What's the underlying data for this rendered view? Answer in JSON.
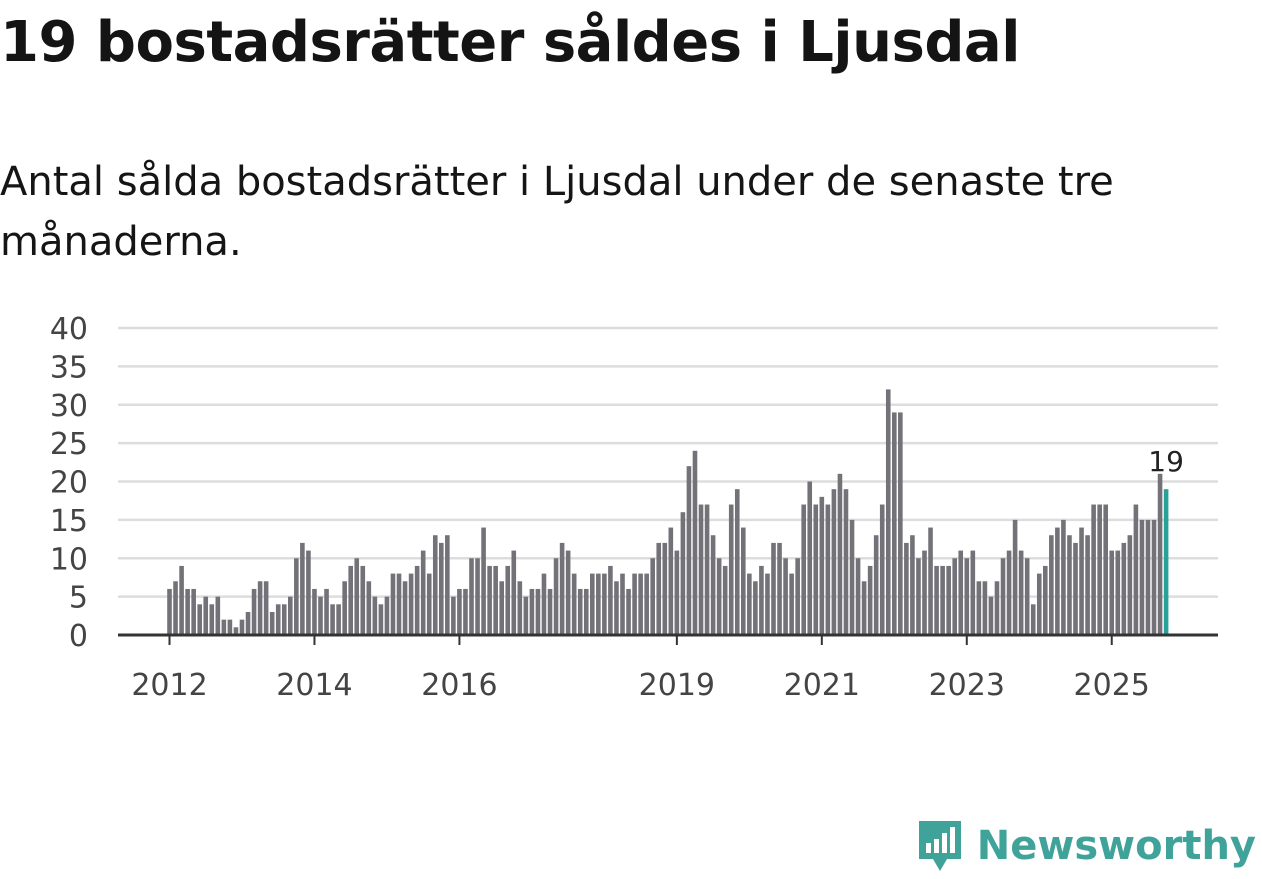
{
  "header": {
    "title": "19 bostadsrätter såldes i Ljusdal",
    "subtitle": "Antal sålda bostadsrätter i Ljusdal under de senaste tre månaderna."
  },
  "brand": {
    "name": "Newsworthy",
    "icon": "newsworthy-logo-icon",
    "color": "#3fa39a"
  },
  "colors": {
    "bar": "#737278",
    "highlight": "#2aa198",
    "grid": "#dddddd",
    "axis": "#333333"
  },
  "chart_data": {
    "type": "bar",
    "title": "19 bostadsrätter såldes i Ljusdal",
    "subtitle": "Antal sålda bostadsrätter i Ljusdal under de senaste tre månaderna.",
    "xlabel": "",
    "ylabel": "",
    "ylim": [
      0,
      40
    ],
    "yticks": [
      0,
      5,
      10,
      15,
      20,
      25,
      30,
      35,
      40
    ],
    "grid": true,
    "start": "2012-01",
    "frequency": "monthly",
    "xticks": [
      {
        "label": "2012",
        "index": 0
      },
      {
        "label": "2014",
        "index": 24
      },
      {
        "label": "2016",
        "index": 48
      },
      {
        "label": "2019",
        "index": 84
      },
      {
        "label": "2021",
        "index": 108
      },
      {
        "label": "2023",
        "index": 132
      },
      {
        "label": "2025",
        "index": 156
      }
    ],
    "values": [
      6,
      7,
      9,
      6,
      6,
      4,
      5,
      4,
      5,
      2,
      2,
      1,
      2,
      3,
      6,
      7,
      7,
      3,
      4,
      4,
      5,
      10,
      12,
      11,
      6,
      5,
      6,
      4,
      4,
      7,
      9,
      10,
      9,
      7,
      5,
      4,
      5,
      8,
      8,
      7,
      8,
      9,
      11,
      8,
      13,
      12,
      13,
      5,
      6,
      6,
      10,
      10,
      14,
      9,
      9,
      7,
      9,
      11,
      7,
      5,
      6,
      6,
      8,
      6,
      10,
      12,
      11,
      8,
      6,
      6,
      8,
      8,
      8,
      9,
      7,
      8,
      6,
      8,
      8,
      8,
      10,
      12,
      12,
      14,
      11,
      16,
      22,
      24,
      17,
      17,
      13,
      10,
      9,
      17,
      19,
      14,
      8,
      7,
      9,
      8,
      12,
      12,
      10,
      8,
      10,
      17,
      20,
      17,
      18,
      17,
      19,
      21,
      19,
      15,
      10,
      7,
      9,
      13,
      17,
      32,
      29,
      29,
      12,
      13,
      10,
      11,
      14,
      9,
      9,
      9,
      10,
      11,
      10,
      11,
      7,
      7,
      5,
      7,
      10,
      11,
      15,
      11,
      10,
      4,
      8,
      9,
      13,
      14,
      15,
      13,
      12,
      14,
      13,
      17,
      17,
      17,
      11,
      11,
      12,
      13,
      17,
      15,
      15,
      15,
      21,
      19
    ],
    "highlight_index": 165,
    "annotation": {
      "text": "19",
      "index": 165
    }
  }
}
